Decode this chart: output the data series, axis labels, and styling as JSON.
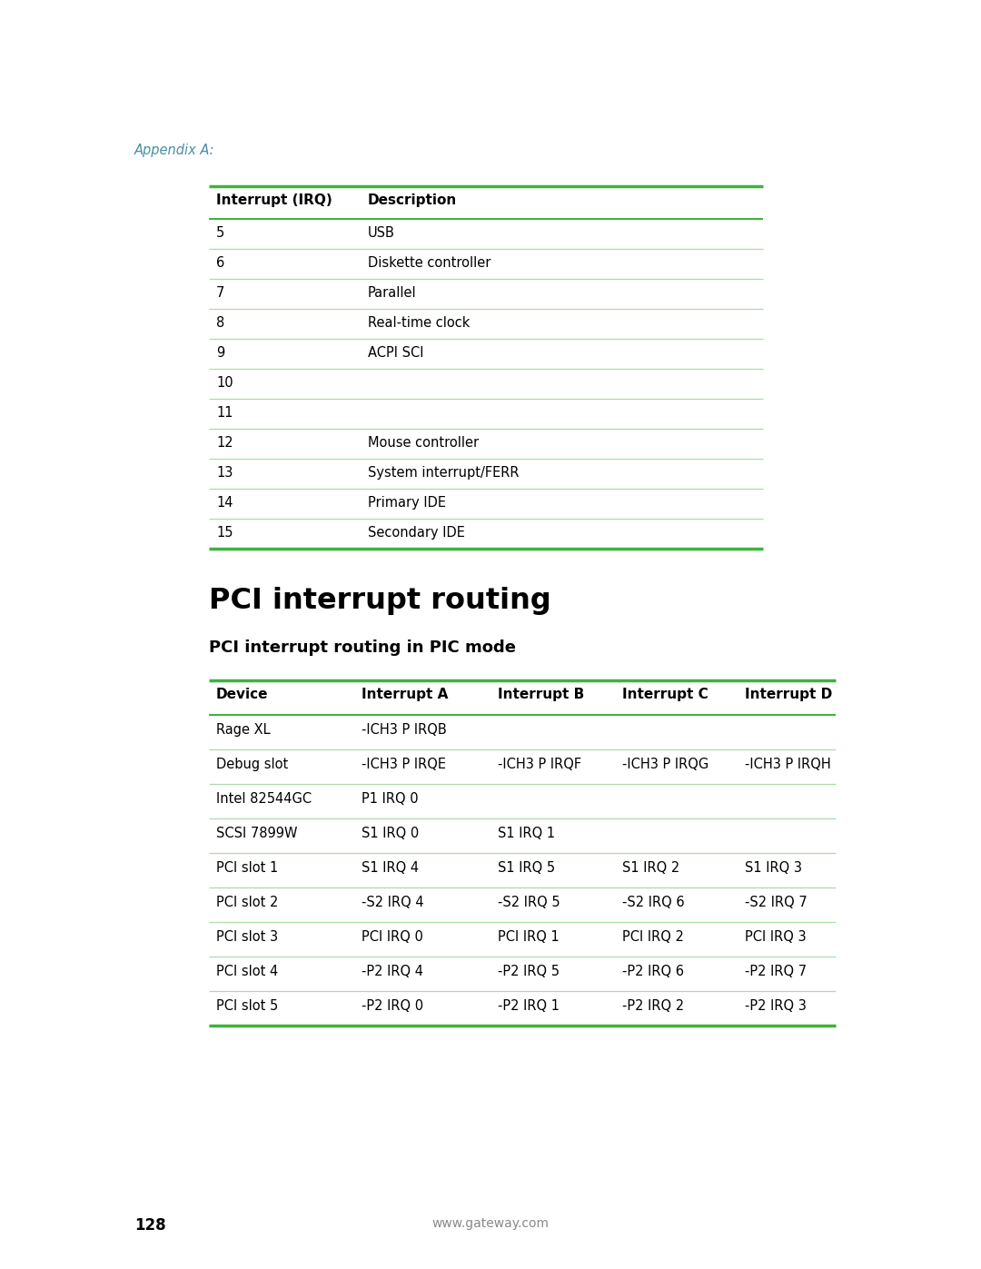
{
  "appendix_label": "Appendix A:",
  "table1_headers": [
    "Interrupt (IRQ)",
    "Description"
  ],
  "table1_rows": [
    [
      "5",
      "USB"
    ],
    [
      "6",
      "Diskette controller"
    ],
    [
      "7",
      "Parallel"
    ],
    [
      "8",
      "Real-time clock"
    ],
    [
      "9",
      "ACPI SCI"
    ],
    [
      "10",
      ""
    ],
    [
      "11",
      ""
    ],
    [
      "12",
      "Mouse controller"
    ],
    [
      "13",
      "System interrupt/FERR"
    ],
    [
      "14",
      "Primary IDE"
    ],
    [
      "15",
      "Secondary IDE"
    ]
  ],
  "section_title": "PCI interrupt routing",
  "subsection_title": "PCI interrupt routing in PIC mode",
  "table2_headers": [
    "Device",
    "Interrupt A",
    "Interrupt B",
    "Interrupt C",
    "Interrupt D"
  ],
  "table2_rows": [
    [
      "Rage XL",
      "-ICH3 P IRQB",
      "",
      "",
      ""
    ],
    [
      "Debug slot",
      "-ICH3 P IRQE",
      "-ICH3 P IRQF",
      "-ICH3 P IRQG",
      "-ICH3 P IRQH"
    ],
    [
      "Intel 82544GC",
      "P1 IRQ 0",
      "",
      "",
      ""
    ],
    [
      "SCSI 7899W",
      "S1 IRQ 0",
      "S1 IRQ 1",
      "",
      ""
    ],
    [
      "PCI slot 1",
      "S1 IRQ 4",
      "S1 IRQ 5",
      "S1 IRQ 2",
      "S1 IRQ 3"
    ],
    [
      "PCI slot 2",
      "-S2 IRQ 4",
      "-S2 IRQ 5",
      "-S2 IRQ 6",
      "-S2 IRQ 7"
    ],
    [
      "PCI slot 3",
      "PCI IRQ 0",
      "PCI IRQ 1",
      "PCI IRQ 2",
      "PCI IRQ 3"
    ],
    [
      "PCI slot 4",
      "-P2 IRQ 4",
      "-P2 IRQ 5",
      "-P2 IRQ 6",
      "-P2 IRQ 7"
    ],
    [
      "PCI slot 5",
      "-P2 IRQ 0",
      "-P2 IRQ 1",
      "-P2 IRQ 2",
      "-P2 IRQ 3"
    ]
  ],
  "page_number": "128",
  "website": "www.gateway.com",
  "green_color": "#3DB33D",
  "text_color": "#000000",
  "appendix_color": "#4A8FA8",
  "website_color": "#888888",
  "row_sep_color": "#AADDAA"
}
